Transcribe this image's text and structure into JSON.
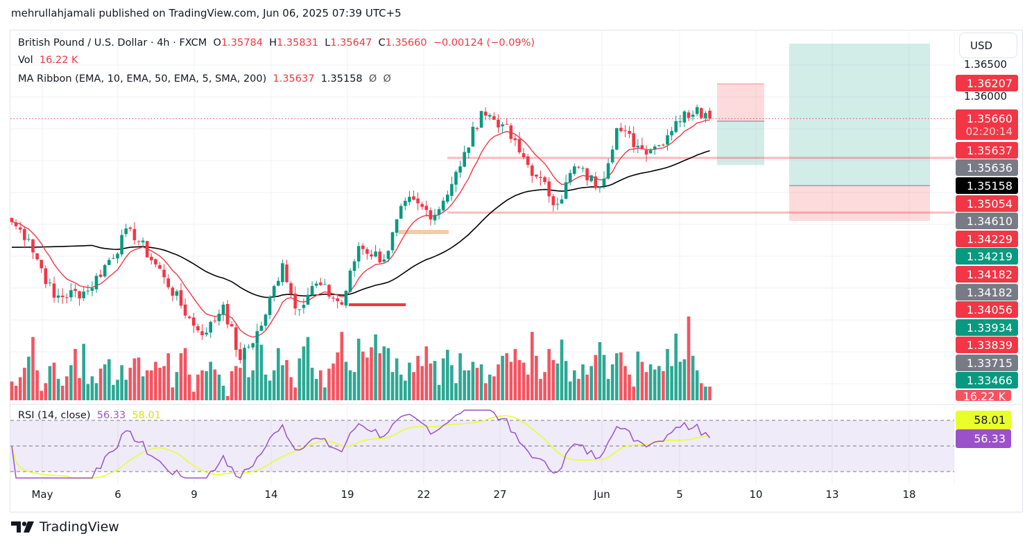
{
  "published_line": "mehrullahjamali published on TradingView.com, Jun 06, 2025 07:39 UTC+5",
  "legend": {
    "symbol": "British Pound / U.S. Dollar · 4h · FXCM",
    "o_label": "O",
    "o": "1.35784",
    "h_label": "H",
    "h": "1.35831",
    "l_label": "L",
    "l": "1.35647",
    "c_label": "C",
    "c": "1.35660",
    "change": "−0.00124 (−0.09%)",
    "vol_label": "Vol",
    "vol": "16.22 K",
    "ma_label": "MA Ribbon (EMA, 10, EMA, 50, EMA, 5, SMA, 200)",
    "ma_val1": "1.35637",
    "ma_val2": "1.35158",
    "ma_val3": "Ø",
    "ma_val4": "Ø"
  },
  "rsi_legend": {
    "label": "RSI (14, close)",
    "rsi": "56.33",
    "ma": "58.01"
  },
  "currency_button": "USD",
  "price_axis": {
    "ticks": [
      "1.36500",
      "1.36000"
    ]
  },
  "price_badges": [
    {
      "value": "1.36207",
      "color": "#f23645",
      "price": 1.36207
    },
    {
      "value": "1.35660",
      "sub": "02:20:14",
      "color": "#f23645",
      "price": 1.3566
    },
    {
      "value": "1.35637",
      "color": "#f23645"
    },
    {
      "value": "1.35636",
      "color": "#787b86"
    },
    {
      "value": "1.35158",
      "color": "#000000"
    },
    {
      "value": "1.35054",
      "color": "#f23645"
    },
    {
      "value": "1.34610",
      "color": "#787b86"
    },
    {
      "value": "1.34229",
      "color": "#f23645"
    },
    {
      "value": "1.34219",
      "color": "#089981"
    },
    {
      "value": "1.34182",
      "color": "#f23645"
    },
    {
      "value": "1.34182",
      "color": "#787b86"
    },
    {
      "value": "1.34056",
      "color": "#f23645"
    },
    {
      "value": "1.33934",
      "color": "#089981"
    },
    {
      "value": "1.33839",
      "color": "#f23645"
    },
    {
      "value": "1.33715",
      "color": "#787b86"
    },
    {
      "value": "1.33466",
      "color": "#089981"
    },
    {
      "value": "16.22 K",
      "color": "#f7525f"
    }
  ],
  "rsi_badges": [
    {
      "value": "58.01",
      "color": "#e8ff2a",
      "text": "#131722"
    },
    {
      "value": "56.33",
      "color": "#9b51c9",
      "text": "#ffffff"
    }
  ],
  "x_axis": {
    "labels": [
      "May",
      "6",
      "9",
      "14",
      "19",
      "22",
      "27",
      "Jun",
      "5",
      "10",
      "13",
      "18"
    ]
  },
  "logo_text": "TradingView",
  "colors": {
    "up": "#089981",
    "down": "#f23645",
    "ema10": "#f23645",
    "ema50": "#000000",
    "rsi": "#9b51c9",
    "rsi_ma": "#e8ff2a"
  },
  "chart_data": {
    "type": "candlestick",
    "title": "British Pound / U.S. Dollar · 4h · FXCM",
    "ylim": [
      1.3124,
      1.3703
    ],
    "ylabel": "USD",
    "candle_count": 166,
    "close_waypoints": [
      [
        0,
        1.3404
      ],
      [
        4,
        1.3377
      ],
      [
        10,
        1.3285
      ],
      [
        18,
        1.3296
      ],
      [
        28,
        1.3393
      ],
      [
        36,
        1.3317
      ],
      [
        43,
        1.3241
      ],
      [
        46,
        1.323
      ],
      [
        50,
        1.3274
      ],
      [
        54,
        1.3187
      ],
      [
        59,
        1.3241
      ],
      [
        64,
        1.3339
      ],
      [
        67,
        1.3268
      ],
      [
        72,
        1.3307
      ],
      [
        78,
        1.3274
      ],
      [
        82,
        1.3366
      ],
      [
        88,
        1.3345
      ],
      [
        93,
        1.3437
      ],
      [
        100,
        1.3415
      ],
      [
        106,
        1.3491
      ],
      [
        111,
        1.3578
      ],
      [
        116,
        1.3557
      ],
      [
        120,
        1.3513
      ],
      [
        124,
        1.3475
      ],
      [
        129,
        1.3432
      ],
      [
        133,
        1.3491
      ],
      [
        139,
        1.3459
      ],
      [
        143,
        1.3551
      ],
      [
        149,
        1.3518
      ],
      [
        153,
        1.3524
      ],
      [
        157,
        1.3562
      ],
      [
        162,
        1.3584
      ],
      [
        165,
        1.3566
      ]
    ],
    "last_candle": {
      "open": 1.35784,
      "high": 1.35831,
      "low": 1.35647,
      "close": 1.3566
    },
    "volume_k": [
      22,
      17,
      27,
      38,
      51,
      74,
      35,
      11,
      20,
      40,
      44,
      25,
      17,
      28,
      41,
      60,
      26,
      66,
      19,
      28,
      20,
      37,
      42,
      48,
      18,
      24,
      41,
      24,
      38,
      49,
      50,
      28,
      35,
      35,
      45,
      38,
      40,
      55,
      15,
      33,
      55,
      61,
      30,
      10,
      30,
      35,
      34,
      45,
      36,
      30,
      17,
      5,
      34,
      40,
      38,
      52,
      27,
      35,
      66,
      65,
      30,
      23,
      35,
      61,
      41,
      47,
      27,
      15,
      49,
      63,
      74,
      38,
      25,
      35,
      15,
      37,
      43,
      56,
      80,
      45,
      35,
      33,
      72,
      57,
      50,
      62,
      77,
      55,
      63,
      61,
      33,
      49,
      30,
      23,
      44,
      33,
      52,
      40,
      63,
      43,
      46,
      18,
      49,
      59,
      41,
      20,
      55,
      35,
      35,
      45,
      38,
      42,
      20,
      30,
      28,
      42,
      52,
      55,
      45,
      60,
      47,
      44,
      30,
      80,
      52,
      25,
      33,
      60,
      47,
      43,
      71,
      46,
      22,
      35,
      25,
      42,
      30,
      40,
      53,
      68,
      53,
      25,
      42,
      55,
      56,
      40,
      30,
      16,
      57,
      45,
      33,
      42,
      36,
      40,
      34,
      60,
      40,
      78,
      45,
      48,
      98,
      52,
      35,
      20,
      16,
      16
    ],
    "overlays": {
      "horizontal_levels": [
        1.35054,
        1.34182
      ],
      "short_position": {
        "entry": 1.3562,
        "stop": 1.36207,
        "target": 1.3466
      },
      "long_position": {
        "entry": 1.3466,
        "stop": 1.3452,
        "target": 1.37
      },
      "markers": [
        {
          "price": 1.3423,
          "color": "#f7c9a8"
        },
        {
          "price": 1.3354,
          "color": "#f23645"
        }
      ]
    },
    "rsi": {
      "levels": [
        70,
        50,
        30
      ],
      "last": 56.33,
      "ma_last": 58.01
    },
    "x_tick_labels": [
      "May",
      "6",
      "9",
      "14",
      "19",
      "22",
      "27",
      "Jun",
      "5",
      "10",
      "13",
      "18"
    ]
  }
}
